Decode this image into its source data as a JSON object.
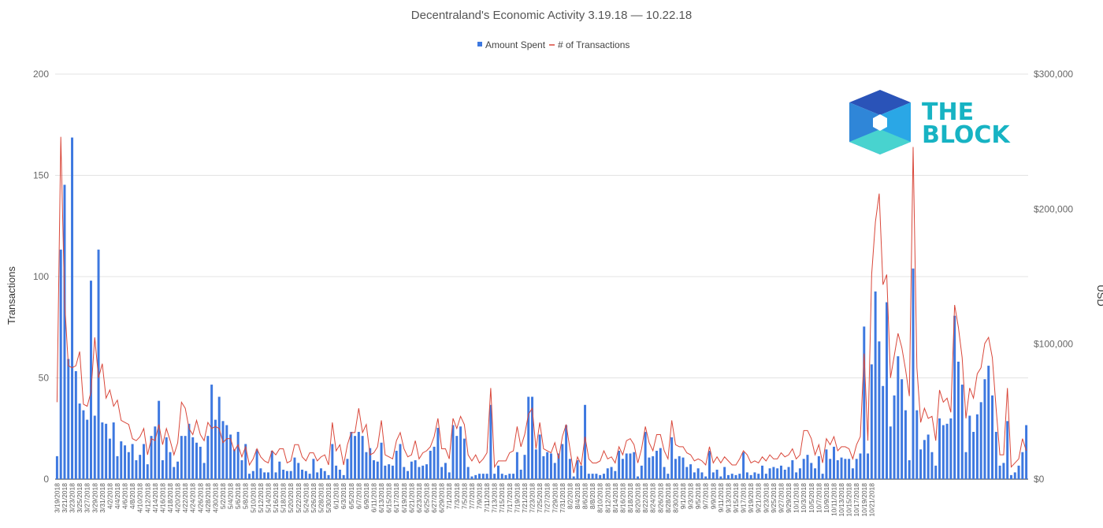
{
  "chart_data": {
    "type": "bar+line",
    "title": "Decentraland's Economic Activity 3.19.18 — 10.22.18",
    "legend": {
      "position": "top",
      "items": [
        "Amount Spent",
        "# of Transactions"
      ]
    },
    "y_left": {
      "label": "Transactions",
      "range": [
        0,
        200
      ],
      "ticks": [
        "0",
        "50",
        "100",
        "150",
        "200"
      ]
    },
    "y_right": {
      "label": "USD",
      "range": [
        0,
        300000
      ],
      "ticks": [
        "$0",
        "$100,000",
        "$200,000",
        "$300,000"
      ]
    },
    "grid": true,
    "start_date": "2018-03-19",
    "x_labels": [
      "3/19/2018",
      "3/21/2018",
      "3/23/2018",
      "3/25/2018",
      "3/27/2018",
      "3/29/2018",
      "3/31/2018",
      "4/2/2018",
      "4/4/2018",
      "4/6/2018",
      "4/8/2018",
      "4/10/2018",
      "4/12/2018",
      "4/14/2018",
      "4/16/2018",
      "4/18/2018",
      "4/20/2018",
      "4/22/2018",
      "4/24/2018",
      "4/26/2018",
      "4/28/2018",
      "4/30/2018",
      "5/2/2018",
      "5/4/2018",
      "5/6/2018",
      "5/8/2018",
      "5/10/2018",
      "5/12/2018",
      "5/14/2018",
      "5/16/2018",
      "5/18/2018",
      "5/20/2018",
      "5/22/2018",
      "5/24/2018",
      "5/26/2018",
      "5/28/2018",
      "5/30/2018",
      "6/1/2018",
      "6/3/2018",
      "6/5/2018",
      "6/7/2018",
      "6/9/2018",
      "6/11/2018",
      "6/13/2018",
      "6/15/2018",
      "6/17/2018",
      "6/19/2018",
      "6/21/2018",
      "6/23/2018",
      "6/25/2018",
      "6/27/2018",
      "6/29/2018",
      "7/1/2018",
      "7/3/2018",
      "7/5/2018",
      "7/7/2018",
      "7/9/2018",
      "7/11/2018",
      "7/13/2018",
      "7/15/2018",
      "7/17/2018",
      "7/19/2018",
      "7/21/2018",
      "7/23/2018",
      "7/25/2018",
      "7/27/2018",
      "7/29/2018",
      "7/31/2018",
      "8/2/2018",
      "8/4/2018",
      "8/6/2018",
      "8/8/2018",
      "8/10/2018",
      "8/12/2018",
      "8/14/2018",
      "8/16/2018",
      "8/18/2018",
      "8/20/2018",
      "8/22/2018",
      "8/24/2018",
      "8/26/2018",
      "8/28/2018",
      "8/30/2018",
      "9/1/2018",
      "9/3/2018",
      "9/5/2018",
      "9/7/2018",
      "9/9/2018",
      "9/11/2018",
      "9/13/2018",
      "9/15/2018",
      "9/17/2018",
      "9/19/2018",
      "9/21/2018",
      "9/23/2018",
      "9/25/2018",
      "9/27/2018",
      "9/29/2018",
      "10/1/2018",
      "10/3/2018",
      "10/5/2018",
      "10/7/2018",
      "10/9/2018",
      "10/11/2018",
      "10/13/2018",
      "10/15/2018",
      "10/17/2018",
      "10/19/2018",
      "10/21/2018"
    ],
    "series": [
      {
        "name": "Amount Spent",
        "axis": "right",
        "color": "#3d78e0",
        "values": [
          17000,
          170000,
          218000,
          89000,
          253000,
          80000,
          56000,
          51000,
          44000,
          147000,
          47000,
          170000,
          42000,
          41000,
          30000,
          42000,
          17000,
          28000,
          25000,
          20000,
          26000,
          14000,
          18000,
          26000,
          11000,
          32000,
          39000,
          58000,
          14000,
          31000,
          20000,
          9000,
          13000,
          32000,
          32000,
          41000,
          31000,
          27000,
          24000,
          12000,
          32000,
          70000,
          44000,
          61000,
          43000,
          40000,
          33000,
          22000,
          35000,
          14000,
          26000,
          4000,
          6000,
          22000,
          8000,
          5000,
          5000,
          21000,
          5000,
          13000,
          7000,
          6000,
          6000,
          16000,
          12000,
          7000,
          6000,
          4000,
          15000,
          5000,
          8000,
          6000,
          3000,
          26000,
          10000,
          7000,
          3000,
          15000,
          35000,
          32000,
          35000,
          32000,
          20000,
          23000,
          14000,
          13000,
          27000,
          10000,
          11000,
          10000,
          21000,
          26000,
          9000,
          6000,
          13000,
          14000,
          9000,
          10000,
          11000,
          21000,
          24000,
          38000,
          9000,
          12000,
          5000,
          40000,
          32000,
          39000,
          30000,
          9000,
          2000,
          3000,
          4000,
          4000,
          4000,
          55000,
          4000,
          10000,
          4000,
          3000,
          4000,
          4000,
          20000,
          7000,
          18000,
          61000,
          61000,
          22000,
          33000,
          17000,
          20000,
          19000,
          12000,
          19000,
          26000,
          40000,
          15000,
          2000,
          14000,
          10000,
          55000,
          4000,
          4000,
          4000,
          3000,
          4000,
          8000,
          9000,
          6000,
          21000,
          15000,
          19000,
          19000,
          20000,
          2000,
          10000,
          35000,
          16000,
          17000,
          21000,
          23000,
          9000,
          4000,
          31000,
          15000,
          17000,
          16000,
          9000,
          11000,
          5000,
          8000,
          5000,
          2000,
          21000,
          5000,
          7000,
          2000,
          9000,
          3000,
          4000,
          3000,
          4000,
          20000,
          5000,
          3000,
          5000,
          4000,
          10000,
          4000,
          8000,
          9000,
          8000,
          10000,
          7000,
          9000,
          14000,
          5000,
          8000,
          15000,
          18000,
          12000,
          8000,
          17000,
          4000,
          22000,
          15000,
          24000,
          14000,
          16000,
          15000,
          15000,
          8000,
          15000,
          19000,
          113000,
          19000,
          85000,
          139000,
          102000,
          69000,
          131000,
          39000,
          62000,
          91000,
          74000,
          51000,
          14000,
          156000,
          51000,
          22000,
          29000,
          33000,
          20000,
          10000,
          45000,
          40000,
          41000,
          45000,
          121000,
          87000,
          70000,
          20000,
          47000,
          35000,
          48000,
          57000,
          74000,
          84000,
          62000,
          35000,
          10000,
          12000,
          43000,
          3000,
          5000,
          10000,
          20000,
          40000
        ]
      },
      {
        "name": "# of Transactions",
        "axis": "left",
        "color": "#d9473a",
        "values": [
          38,
          169,
          88,
          56,
          55,
          56,
          63,
          37,
          36,
          43,
          70,
          50,
          57,
          40,
          44,
          36,
          39,
          29,
          28,
          27,
          20,
          19,
          21,
          25,
          12,
          20,
          19,
          27,
          17,
          25,
          19,
          12,
          18,
          38,
          35,
          25,
          22,
          29,
          22,
          19,
          28,
          25,
          26,
          25,
          18,
          20,
          20,
          14,
          17,
          11,
          16,
          7,
          10,
          15,
          11,
          9,
          8,
          14,
          12,
          15,
          15,
          8,
          9,
          17,
          17,
          11,
          9,
          13,
          13,
          9,
          11,
          12,
          7,
          28,
          14,
          17,
          7,
          17,
          23,
          23,
          35,
          23,
          27,
          12,
          13,
          16,
          29,
          12,
          11,
          10,
          19,
          23,
          15,
          11,
          12,
          19,
          10,
          13,
          14,
          16,
          21,
          30,
          15,
          15,
          10,
          30,
          25,
          31,
          27,
          12,
          9,
          12,
          8,
          10,
          13,
          45,
          6,
          9,
          9,
          9,
          13,
          14,
          26,
          16,
          22,
          32,
          35,
          15,
          28,
          15,
          14,
          13,
          18,
          10,
          21,
          27,
          15,
          3,
          11,
          7,
          21,
          10,
          8,
          8,
          9,
          14,
          10,
          11,
          8,
          16,
          12,
          19,
          20,
          17,
          8,
          15,
          26,
          18,
          14,
          22,
          22,
          14,
          10,
          29,
          17,
          16,
          16,
          13,
          12,
          9,
          10,
          9,
          7,
          16,
          8,
          11,
          8,
          11,
          9,
          7,
          7,
          10,
          14,
          12,
          8,
          9,
          8,
          11,
          9,
          12,
          10,
          10,
          13,
          11,
          12,
          15,
          10,
          12,
          24,
          24,
          20,
          12,
          17,
          8,
          20,
          17,
          21,
          14,
          16,
          16,
          15,
          10,
          17,
          21,
          62,
          19,
          101,
          127,
          141,
          96,
          101,
          50,
          61,
          72,
          65,
          54,
          41,
          164,
          55,
          28,
          35,
          30,
          31,
          19,
          44,
          38,
          40,
          33,
          86,
          75,
          60,
          30,
          45,
          40,
          52,
          55,
          67,
          70,
          60,
          35,
          12,
          12,
          45,
          6,
          8,
          10,
          20,
          14
        ]
      }
    ]
  }
}
